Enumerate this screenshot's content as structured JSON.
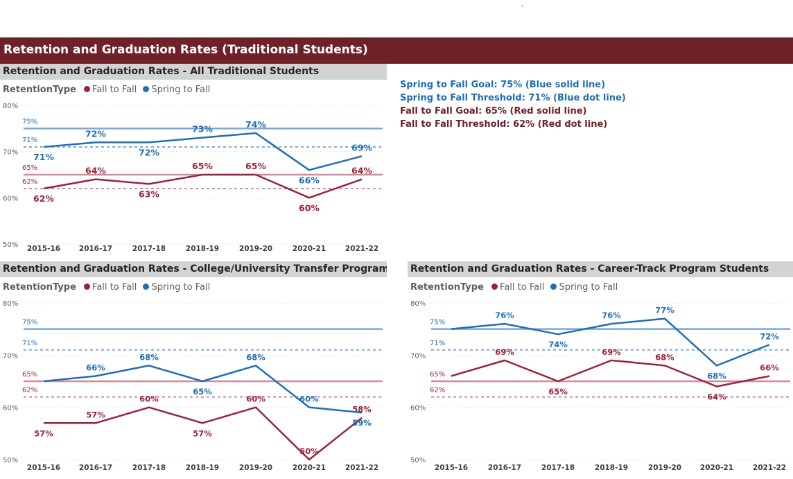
{
  "header": {
    "dot": "·",
    "title": "Retention and Graduation Rates (Traditional Students)"
  },
  "colors": {
    "fall": "#9b2336",
    "spring": "#1f6eb5",
    "banner": "#6e2227",
    "spring_goal_line": "#7aa9da",
    "fall_goal_line": "#d08a99"
  },
  "goals_text": [
    {
      "text": "Spring to Fall Goal: 75% (Blue solid line)",
      "color": "#1f6eb5"
    },
    {
      "text": "Spring to Fall Threshold:  71% (Blue dot line)",
      "color": "#1f6eb5"
    },
    {
      "text": "Fall to Fall Goal:  65% (Red solid line)",
      "color": "#6e2227"
    },
    {
      "text": "Fall to Fall Threshold:  62% (Red dot line)",
      "color": "#6e2227"
    }
  ],
  "legend": {
    "title": "RetentionType",
    "fall": "Fall to Fall",
    "spring": "Spring to Fall"
  },
  "chart_data": [
    {
      "type": "line",
      "title": "Retention and Graduation Rates - All Traditional Students",
      "categories": [
        "2015-16",
        "2016-17",
        "2017-18",
        "2018-19",
        "2019-20",
        "2020-21",
        "2021-22"
      ],
      "series": [
        {
          "name": "Fall to Fall",
          "values": [
            62,
            64,
            63,
            65,
            65,
            60,
            64
          ],
          "labels": [
            "62%",
            "64%",
            "63%",
            "65%",
            "65%",
            "60%",
            "64%"
          ]
        },
        {
          "name": "Spring to Fall",
          "values": [
            71,
            72,
            72,
            73,
            74,
            66,
            69
          ],
          "labels": [
            "71%",
            "72%",
            "72%",
            "73%",
            "74%",
            "66%",
            "69%"
          ]
        }
      ],
      "reference_lines": [
        {
          "value": 75,
          "label": "75%",
          "series": "Spring to Fall",
          "style": "solid"
        },
        {
          "value": 71,
          "label": "71%",
          "series": "Spring to Fall",
          "style": "dotted"
        },
        {
          "value": 65,
          "label": "65%",
          "series": "Fall to Fall",
          "style": "solid"
        },
        {
          "value": 62,
          "label": "62%",
          "series": "Fall to Fall",
          "style": "dotted"
        }
      ],
      "yticks": [
        "80%",
        "70%",
        "60%",
        "50%"
      ],
      "ylim": [
        50,
        80
      ],
      "grid": true
    },
    {
      "type": "line",
      "title": "Retention and Graduation Rates - College/University Transfer Program Students",
      "categories": [
        "2015-16",
        "2016-17",
        "2017-18",
        "2018-19",
        "2019-20",
        "2020-21",
        "2021-22"
      ],
      "series": [
        {
          "name": "Fall to Fall",
          "values": [
            57,
            57,
            60,
            57,
            60,
            50,
            58
          ],
          "labels": [
            "57%",
            "57%",
            "60%",
            "57%",
            "60%",
            "50%",
            "58%"
          ]
        },
        {
          "name": "Spring to Fall",
          "values": [
            65,
            66,
            68,
            65,
            68,
            60,
            59
          ],
          "labels": [
            "",
            "66%",
            "68%",
            "65%",
            "68%",
            "60%",
            "59%"
          ]
        }
      ],
      "reference_lines": [
        {
          "value": 75,
          "label": "75%",
          "series": "Spring to Fall",
          "style": "solid"
        },
        {
          "value": 71,
          "label": "71%",
          "series": "Spring to Fall",
          "style": "dotted"
        },
        {
          "value": 65,
          "label": "65%",
          "series": "Fall to Fall",
          "style": "solid"
        },
        {
          "value": 62,
          "label": "62%",
          "series": "Fall to Fall",
          "style": "dotted"
        }
      ],
      "yticks": [
        "80%",
        "70%",
        "60%",
        "50%"
      ],
      "ylim": [
        50,
        80
      ],
      "grid": true
    },
    {
      "type": "line",
      "title": "Retention and Graduation Rates - Career-Track Program Students",
      "categories": [
        "2015-16",
        "2016-17",
        "2017-18",
        "2018-19",
        "2019-20",
        "2020-21",
        "2021-22"
      ],
      "series": [
        {
          "name": "Fall to Fall",
          "values": [
            66,
            69,
            65,
            69,
            68,
            64,
            66
          ],
          "labels": [
            "",
            "69%",
            "65%",
            "69%",
            "68%",
            "64%",
            "66%"
          ]
        },
        {
          "name": "Spring to Fall",
          "values": [
            75,
            76,
            74,
            76,
            77,
            68,
            72
          ],
          "labels": [
            "",
            "76%",
            "74%",
            "76%",
            "77%",
            "68%",
            "72%"
          ]
        }
      ],
      "reference_lines": [
        {
          "value": 75,
          "label": "75%",
          "series": "Spring to Fall",
          "style": "solid"
        },
        {
          "value": 71,
          "label": "71%",
          "series": "Spring to Fall",
          "style": "dotted"
        },
        {
          "value": 65,
          "label": "65%",
          "series": "Fall to Fall",
          "style": "solid"
        },
        {
          "value": 62,
          "label": "62%",
          "series": "Fall to Fall",
          "style": "dotted"
        }
      ],
      "yticks": [
        "80%",
        "70%",
        "60%",
        "50%"
      ],
      "ylim": [
        50,
        80
      ],
      "grid": true
    }
  ]
}
